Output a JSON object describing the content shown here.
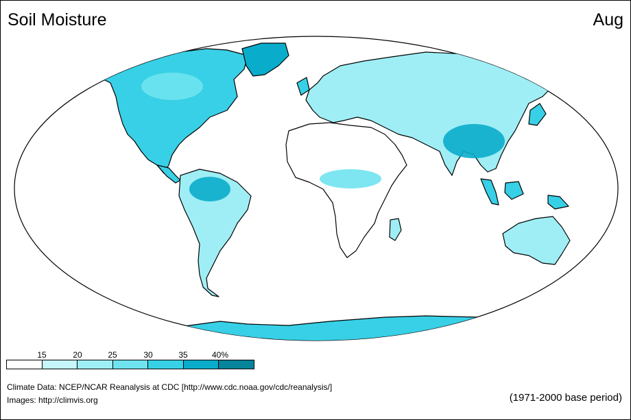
{
  "header": {
    "title": "Soil Moisture",
    "month": "Aug"
  },
  "legend": {
    "tick_labels": [
      "15",
      "20",
      "25",
      "30",
      "35",
      "40%"
    ],
    "colors": [
      "#ffffff",
      "#c4f6fa",
      "#9feef5",
      "#6fe3ef",
      "#38d0e6",
      "#0aaccb",
      "#05849b"
    ]
  },
  "footer": {
    "credit_line1": "Climate Data:  NCEP/NCAR Reanalysis at CDC [http://www.cdc.noaa.gov/cdc/reanalysis/]",
    "credit_line2": "Images:  http://climvis.org",
    "base_period": "(1971-2000 base period)"
  },
  "map": {
    "land_outline_color": "#000000"
  }
}
